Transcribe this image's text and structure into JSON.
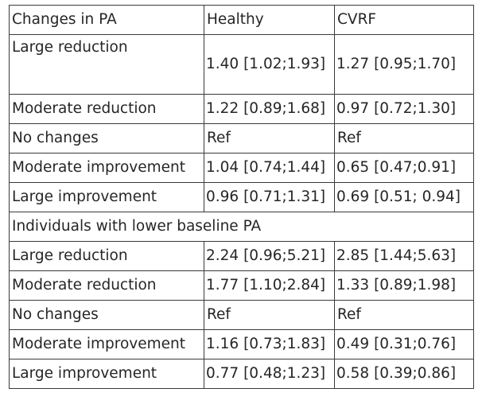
{
  "headers": [
    "Changes in PA",
    "Healthy",
    "CVRF"
  ],
  "group1": [
    {
      "label": "Large reduction",
      "healthy": "1.40 [1.02;1.93]",
      "cvrf": "1.27 [0.95;1.70]"
    },
    {
      "label": "Moderate reduction",
      "healthy": "1.22 [0.89;1.68]",
      "cvrf": "0.97 [0.72;1.30]"
    },
    {
      "label": "No changes",
      "healthy": "Ref",
      "cvrf": "Ref"
    },
    {
      "label": "Moderate improvement",
      "healthy": "1.04 [0.74;1.44]",
      "cvrf": "0.65 [0.47;0.91]"
    },
    {
      "label": "Large improvement",
      "healthy": "0.96 [0.71;1.31]",
      "cvrf": "0.69 [0.51; 0.94]"
    }
  ],
  "section_title": "Individuals with lower baseline PA",
  "group2": [
    {
      "label": "Large reduction",
      "healthy": "2.24 [0.96;5.21]",
      "cvrf": "2.85 [1.44;5.63]"
    },
    {
      "label": "Moderate reduction",
      "healthy": "1.77 [1.10;2.84]",
      "cvrf": "1.33 [0.89;1.98]"
    },
    {
      "label": "No changes",
      "healthy": "Ref",
      "cvrf": "Ref"
    },
    {
      "label": "Moderate improvement",
      "healthy": "1.16 [0.73;1.83]",
      "cvrf": "0.49 [0.31;0.76]"
    },
    {
      "label": "Large improvement",
      "healthy": "0.77 [0.48;1.23]",
      "cvrf": "0.58 [0.39;0.86]"
    }
  ]
}
